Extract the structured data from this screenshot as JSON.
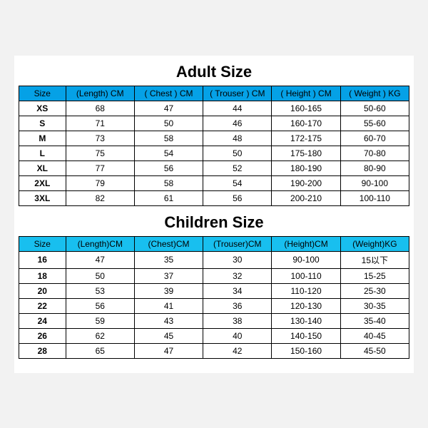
{
  "sections": [
    {
      "key": "adult",
      "title": "Adult Size",
      "header_bg": "#05a1e6",
      "title_fontsize": 22,
      "columns": [
        "Size",
        "(Length)  CM",
        "( Chest )  CM",
        "( Trouser )  CM",
        "( Height )  CM",
        "( Weight )  KG"
      ],
      "rows": [
        [
          "XS",
          "68",
          "47",
          "44",
          "160-165",
          "50-60"
        ],
        [
          "S",
          "71",
          "50",
          "46",
          "160-170",
          "55-60"
        ],
        [
          "M",
          "73",
          "58",
          "48",
          "172-175",
          "60-70"
        ],
        [
          "L",
          "75",
          "54",
          "50",
          "175-180",
          "70-80"
        ],
        [
          "XL",
          "77",
          "56",
          "52",
          "180-190",
          "80-90"
        ],
        [
          "2XL",
          "79",
          "58",
          "54",
          "190-200",
          "90-100"
        ],
        [
          "3XL",
          "82",
          "61",
          "56",
          "200-210",
          "100-110"
        ]
      ]
    },
    {
      "key": "children",
      "title": "Children Size",
      "header_bg": "#18bfef",
      "title_fontsize": 22,
      "columns": [
        "Size",
        "(Length)CM",
        "(Chest)CM",
        "(Trouser)CM",
        "(Height)CM",
        "(Weight)KG"
      ],
      "rows": [
        [
          "16",
          "47",
          "35",
          "30",
          "90-100",
          "15以下"
        ],
        [
          "18",
          "50",
          "37",
          "32",
          "100-110",
          "15-25"
        ],
        [
          "20",
          "53",
          "39",
          "34",
          "110-120",
          "25-30"
        ],
        [
          "22",
          "56",
          "41",
          "36",
          "120-130",
          "30-35"
        ],
        [
          "24",
          "59",
          "43",
          "38",
          "130-140",
          "35-40"
        ],
        [
          "26",
          "62",
          "45",
          "40",
          "140-150",
          "40-45"
        ],
        [
          "28",
          "65",
          "47",
          "42",
          "150-160",
          "45-50"
        ]
      ]
    }
  ],
  "style": {
    "background_color": "#ffffff",
    "page_bg": "#f2f2f2",
    "border_color": "#000000",
    "cell_fontsize": 12,
    "first_col_bold": true
  }
}
